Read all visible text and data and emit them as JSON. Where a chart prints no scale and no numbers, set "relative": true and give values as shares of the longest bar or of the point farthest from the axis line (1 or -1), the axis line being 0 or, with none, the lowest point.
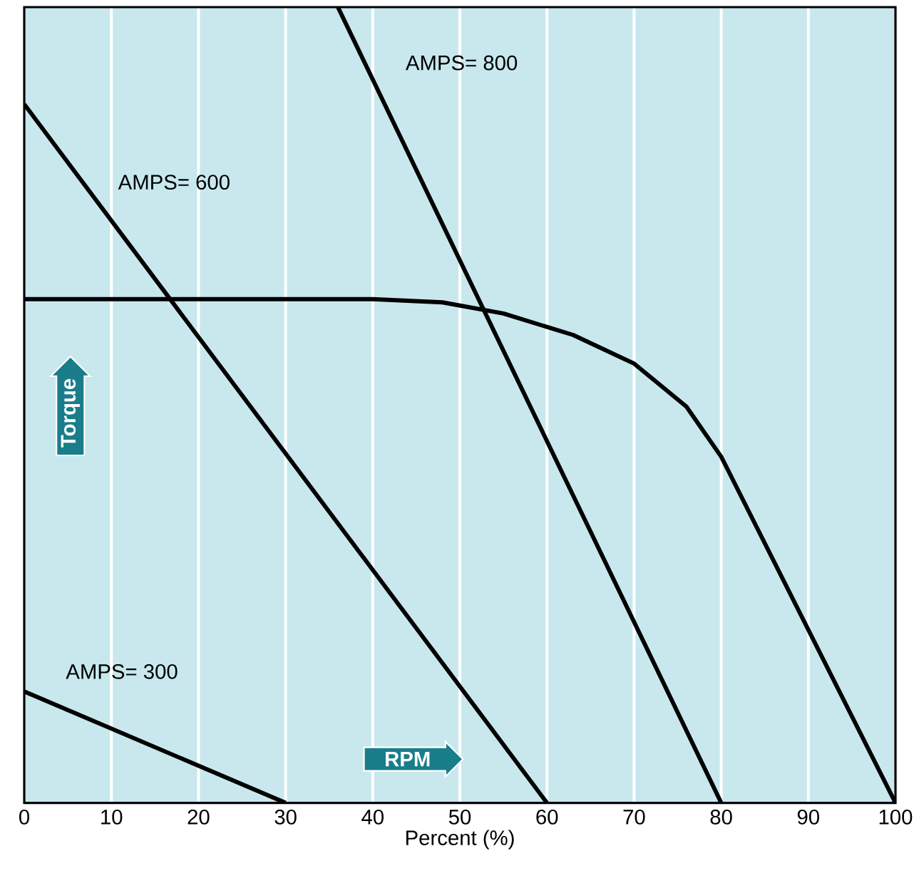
{
  "chart_data": {
    "type": "line",
    "relative": true,
    "xlabel": "Percent (%)",
    "xlim": [
      0,
      100
    ],
    "xticks": [
      0,
      10,
      20,
      30,
      40,
      50,
      60,
      70,
      80,
      90,
      100
    ],
    "grid": "x",
    "tick_labels": "x",
    "marker": "none",
    "line_style": "solid",
    "series": [
      {
        "name": "AMPS= 800",
        "color": "#000000",
        "x": [
          36,
          80
        ],
        "values": [
          1.0,
          0
        ]
      },
      {
        "name": "AMPS= 600",
        "color": "#000000",
        "x": [
          0,
          60
        ],
        "values": [
          0.878,
          0
        ]
      },
      {
        "name": "AMPS= 300",
        "color": "#000000",
        "x": [
          0,
          30
        ],
        "values": [
          0.14,
          0
        ]
      },
      {
        "color": "#000000",
        "x": [
          0,
          40,
          48,
          55,
          63,
          70,
          76,
          80,
          100
        ],
        "values": [
          0.633,
          0.633,
          0.629,
          0.615,
          0.588,
          0.552,
          0.498,
          0.435,
          0
        ]
      }
    ],
    "annotations": [
      "Torque",
      "RPM"
    ]
  }
}
